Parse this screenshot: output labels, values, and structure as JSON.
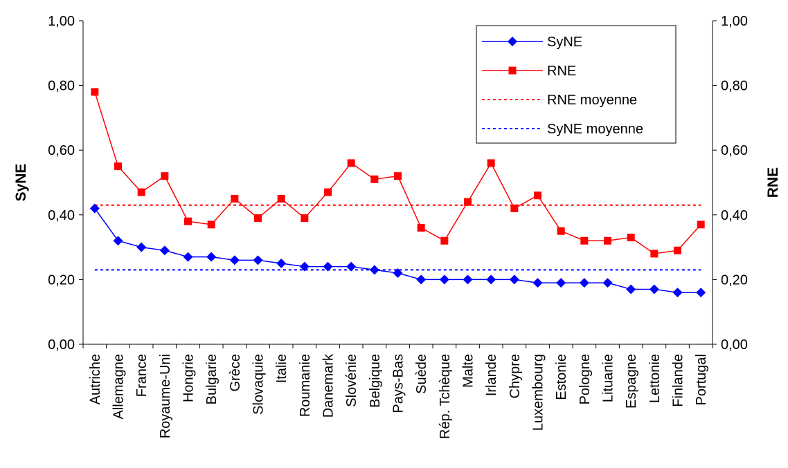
{
  "chart_data": {
    "type": "line",
    "categories": [
      "Autriche",
      "Allemagne",
      "France",
      "Royaume-Uni",
      "Hongrie",
      "Bulgarie",
      "Grèce",
      "Slovaquie",
      "Italie",
      "Roumanie",
      "Danemark",
      "Slovénie",
      "Belgique",
      "Pays-Bas",
      "Suède",
      "Rép. Tchèque",
      "Malte",
      "Irlande",
      "Chypre",
      "Luxembourg",
      "Estonie",
      "Pologne",
      "Lituanie",
      "Espagne",
      "Lettonie",
      "Finlande",
      "Portugal"
    ],
    "series": [
      {
        "name": "SyNE",
        "axis": "left",
        "color": "#0000ff",
        "marker": "diamond",
        "values": [
          0.42,
          0.32,
          0.3,
          0.29,
          0.27,
          0.27,
          0.26,
          0.26,
          0.25,
          0.24,
          0.24,
          0.24,
          0.23,
          0.22,
          0.2,
          0.2,
          0.2,
          0.2,
          0.2,
          0.19,
          0.19,
          0.19,
          0.19,
          0.17,
          0.17,
          0.16,
          0.16
        ]
      },
      {
        "name": "RNE",
        "axis": "right",
        "color": "#ff0000",
        "marker": "square",
        "values": [
          0.78,
          0.55,
          0.47,
          0.52,
          0.38,
          0.37,
          0.45,
          0.39,
          0.45,
          0.39,
          0.47,
          0.56,
          0.51,
          0.52,
          0.36,
          0.32,
          0.44,
          0.56,
          0.42,
          0.46,
          0.35,
          0.32,
          0.32,
          0.33,
          0.28,
          0.29,
          0.37
        ]
      }
    ],
    "reference_lines": [
      {
        "name": "RNE moyenne",
        "value": 0.43,
        "color": "#ff0000",
        "style": "dotted"
      },
      {
        "name": "SyNE moyenne",
        "value": 0.23,
        "color": "#0000ff",
        "style": "dotted"
      }
    ],
    "ylabel": "SyNE",
    "y2label": "RNE",
    "ylim": [
      0,
      1.0
    ],
    "y2lim": [
      0,
      1.0
    ],
    "yticks": [
      "0,00",
      "0,20",
      "0,40",
      "0,60",
      "0,80",
      "1,00"
    ],
    "y2ticks": [
      "0,00",
      "0,20",
      "0,40",
      "0,60",
      "0,80",
      "1,00"
    ],
    "grid": false,
    "legend_position": "top-right"
  }
}
